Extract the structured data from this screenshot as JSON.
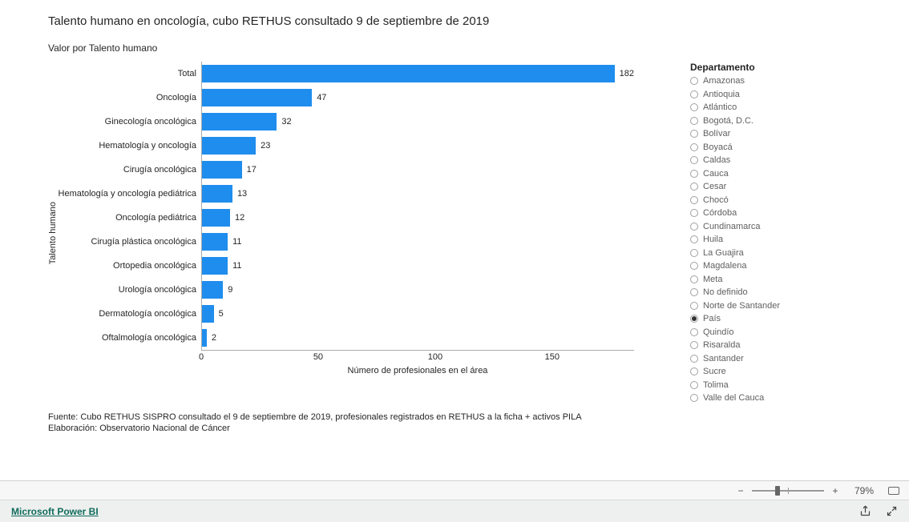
{
  "page_title": "Talento humano en oncología, cubo RETHUS consultado 9 de septiembre de 2019",
  "chart": {
    "type": "bar-horizontal",
    "title": "Valor por Talento humano",
    "y_axis_title": "Talento humano",
    "x_axis_title": "Número de profesionales en el área",
    "bar_color": "#1f8ded",
    "text_color": "#252525",
    "background_color": "#ffffff",
    "x_max": 185,
    "x_ticks": [
      0,
      50,
      100,
      150
    ],
    "categories": [
      {
        "label": "Total",
        "value": 182
      },
      {
        "label": "Oncología",
        "value": 47
      },
      {
        "label": "Ginecología oncológica",
        "value": 32
      },
      {
        "label": "Hematología y oncología",
        "value": 23
      },
      {
        "label": "Cirugía oncológica",
        "value": 17
      },
      {
        "label": "Hematología y oncología pediátrica",
        "value": 13
      },
      {
        "label": "Oncología pediátrica",
        "value": 12
      },
      {
        "label": "Cirugía plástica oncológica",
        "value": 11
      },
      {
        "label": "Ortopedia oncológica",
        "value": 11
      },
      {
        "label": "Urología oncológica",
        "value": 9
      },
      {
        "label": "Dermatología oncológica",
        "value": 5
      },
      {
        "label": "Oftalmología oncológica",
        "value": 2
      }
    ]
  },
  "source": {
    "line1": "Fuente: Cubo RETHUS SISPRO consultado el 9 de septiembre de 2019, profesionales registrados en RETHUS a la ficha + activos PILA",
    "line2": "Elaboración: Observatorio Nacional de Cáncer"
  },
  "slicer": {
    "title": "Departamento",
    "selected": "País",
    "items": [
      "Amazonas",
      "Antioquia",
      "Atlántico",
      "Bogotá, D.C.",
      "Bolívar",
      "Boyacá",
      "Caldas",
      "Cauca",
      "Cesar",
      "Chocó",
      "Córdoba",
      "Cundinamarca",
      "Huila",
      "La Guajira",
      "Magdalena",
      "Meta",
      "No definido",
      "Norte de Santander",
      "País",
      "Quindío",
      "Risaralda",
      "Santander",
      "Sucre",
      "Tolima",
      "Valle del Cauca"
    ]
  },
  "status": {
    "minus": "−",
    "plus": "+",
    "zoom_pct": "79%",
    "thumb_left_pct": 32
  },
  "footer": {
    "brand": "Microsoft Power BI"
  }
}
